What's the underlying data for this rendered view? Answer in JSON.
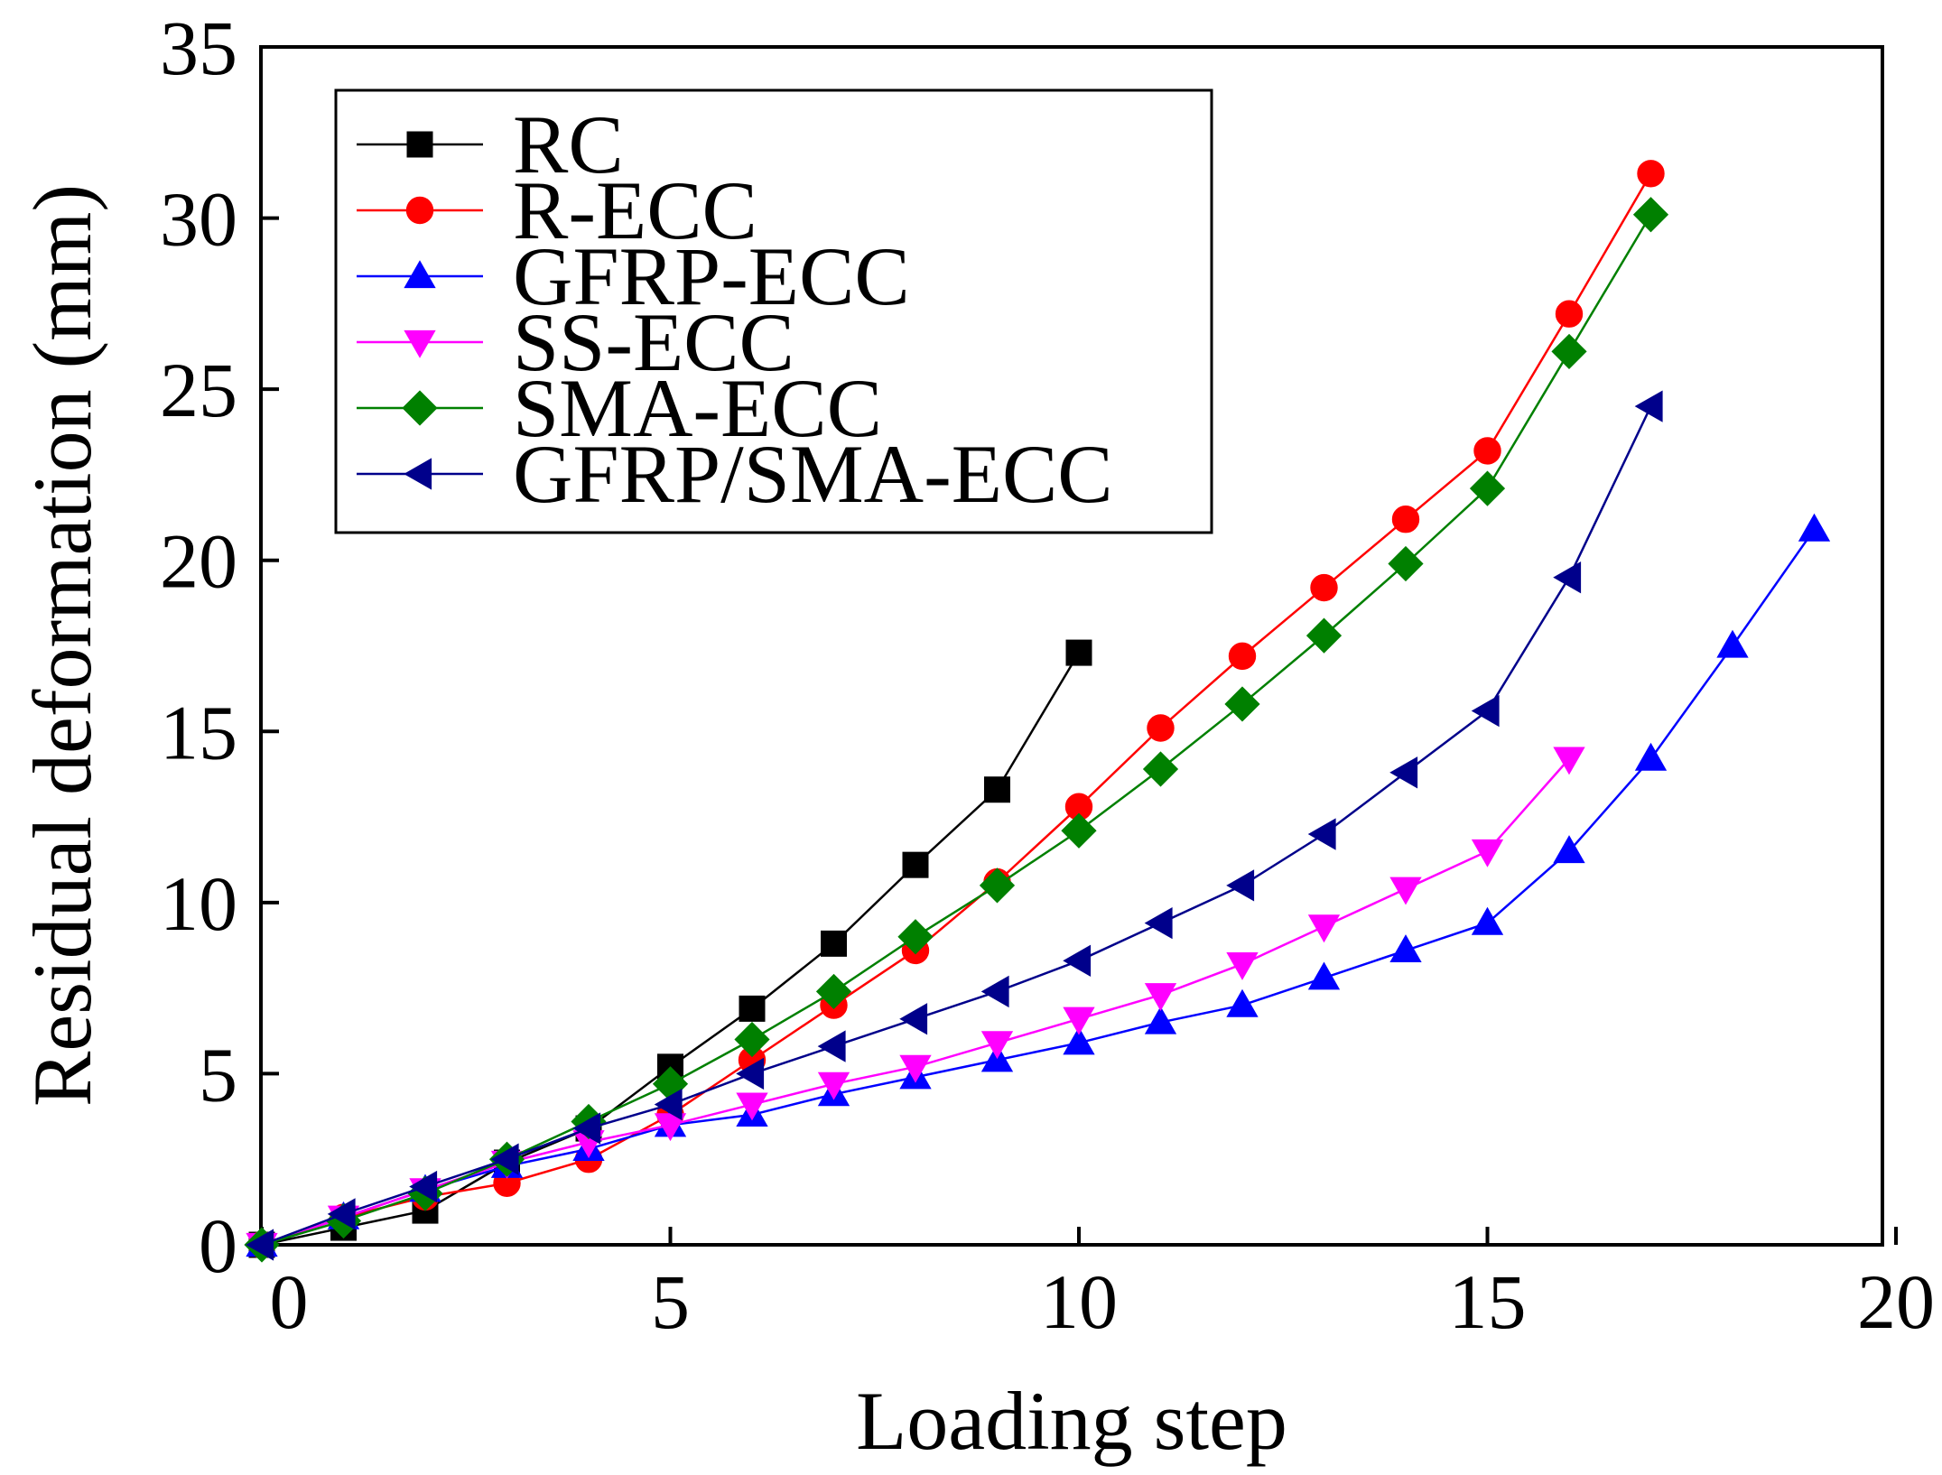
{
  "chart_data": {
    "type": "line",
    "title": "",
    "xlabel": "Loading step",
    "ylabel": "Residual deformation (mm)",
    "xlim": [
      0,
      20
    ],
    "ylim": [
      0,
      35
    ],
    "xticks": [
      0,
      5,
      10,
      15,
      20
    ],
    "yticks": [
      0,
      5,
      10,
      15,
      20,
      25,
      30,
      35
    ],
    "grid": false,
    "legend_position": "top-left",
    "series": [
      {
        "name": "RC",
        "color": "#000000",
        "marker": "square",
        "x": [
          0,
          1,
          2,
          3,
          4,
          5,
          6,
          7,
          8,
          9,
          10
        ],
        "y": [
          0,
          0.5,
          1.0,
          2.4,
          3.4,
          5.2,
          6.9,
          8.8,
          11.1,
          13.3,
          17.3
        ]
      },
      {
        "name": "R-ECC",
        "color": "#ff0000",
        "marker": "circle",
        "x": [
          0,
          1,
          2,
          3,
          4,
          5,
          6,
          7,
          8,
          9,
          10,
          11,
          12,
          13,
          14,
          15,
          16,
          17
        ],
        "y": [
          0,
          0.8,
          1.4,
          1.8,
          2.5,
          3.8,
          5.4,
          7.0,
          8.6,
          10.6,
          12.8,
          15.1,
          17.2,
          19.2,
          21.2,
          23.2,
          27.2,
          31.3
        ]
      },
      {
        "name": "GFRP-ECC",
        "color": "#0000ff",
        "marker": "triangle-up",
        "x": [
          0,
          1,
          2,
          3,
          4,
          5,
          6,
          7,
          8,
          9,
          10,
          11,
          12,
          13,
          14,
          15,
          16,
          17,
          18,
          19
        ],
        "y": [
          0,
          0.8,
          1.6,
          2.3,
          2.8,
          3.5,
          3.8,
          4.4,
          4.9,
          5.4,
          5.9,
          6.5,
          7.0,
          7.8,
          8.6,
          9.4,
          11.5,
          14.2,
          17.5,
          20.9
        ]
      },
      {
        "name": "SS-ECC",
        "color": "#ff00ff",
        "marker": "triangle-down",
        "x": [
          0,
          1,
          2,
          3,
          4,
          5,
          6,
          7,
          8,
          9,
          10,
          11,
          12,
          13,
          14,
          15,
          16
        ],
        "y": [
          0,
          0.8,
          1.6,
          2.4,
          3.0,
          3.5,
          4.1,
          4.7,
          5.2,
          5.9,
          6.6,
          7.3,
          8.2,
          9.3,
          10.4,
          11.5,
          14.2
        ]
      },
      {
        "name": "SMA-ECC",
        "color": "#008000",
        "marker": "diamond",
        "x": [
          0,
          1,
          2,
          3,
          4,
          5,
          6,
          7,
          8,
          9,
          10,
          11,
          12,
          13,
          14,
          15,
          16,
          17
        ],
        "y": [
          0,
          0.7,
          1.5,
          2.5,
          3.6,
          4.7,
          6.0,
          7.4,
          9.0,
          10.5,
          12.1,
          13.9,
          15.8,
          17.8,
          19.9,
          22.1,
          26.1,
          30.1
        ]
      },
      {
        "name": "GFRP/SMA-ECC",
        "color": "#00008b",
        "marker": "triangle-left",
        "x": [
          0,
          1,
          2,
          3,
          4,
          5,
          6,
          7,
          8,
          9,
          10,
          11,
          12,
          13,
          14,
          15,
          16,
          17
        ],
        "y": [
          0,
          0.9,
          1.7,
          2.5,
          3.4,
          4.1,
          5.0,
          5.8,
          6.6,
          7.4,
          8.3,
          9.4,
          10.5,
          12.0,
          13.8,
          15.6,
          19.5,
          24.5
        ]
      }
    ]
  }
}
